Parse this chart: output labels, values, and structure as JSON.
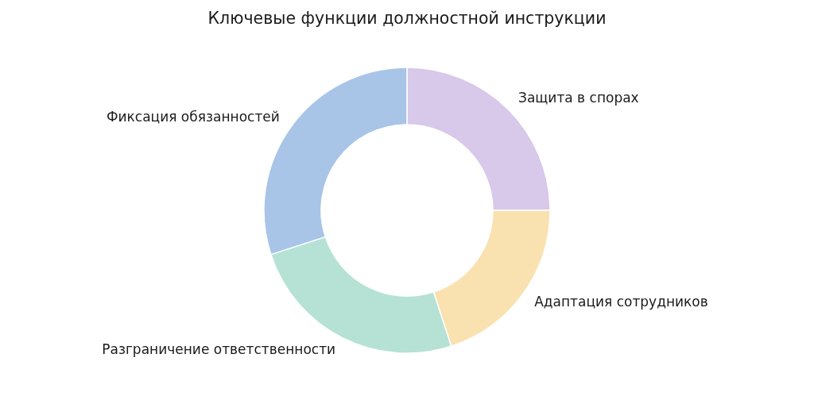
{
  "chart_data": {
    "type": "donut",
    "title": "Ключевые функции должностной инструкции",
    "categories": [
      "Защита в спорах",
      "Адаптация сотрудников",
      "Разграничение ответственности",
      "Фиксация обязанностей"
    ],
    "values": [
      25,
      20,
      25,
      30
    ],
    "colors": [
      "#d8c8ea",
      "#f9e2b0",
      "#b5e2d4",
      "#a8c5e8"
    ],
    "legend": false
  }
}
